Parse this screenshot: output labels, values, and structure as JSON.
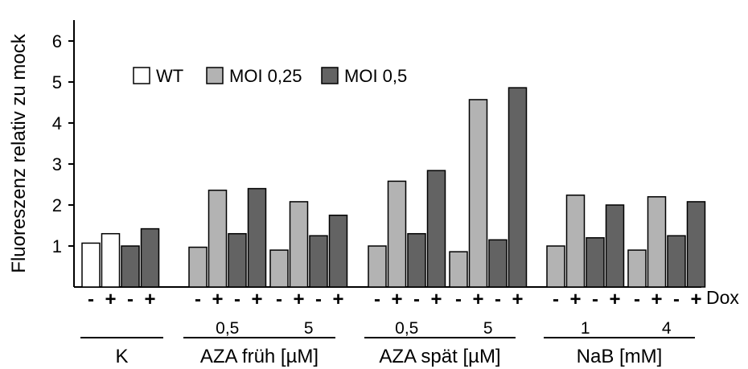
{
  "chart_data": {
    "type": "bar",
    "title": "",
    "ylabel": "Fluoreszenz relativ zu mock",
    "xlabel_right": "Dox",
    "ylim": [
      0,
      6.5
    ],
    "yticks": [
      "1",
      "2",
      "3",
      "4",
      "5",
      "6"
    ],
    "grid": false,
    "legend_position": "top-left",
    "legend": [
      {
        "name": "WT",
        "color": "#ffffff"
      },
      {
        "name": "MOI 0,25",
        "color": "#b3b3b3"
      },
      {
        "name": "MOI 0,5",
        "color": "#636363"
      }
    ],
    "dox_labels": [
      "-",
      "+"
    ],
    "groups": [
      {
        "label": "K",
        "subgroups": [
          {
            "label": "",
            "bars": [
              {
                "series": "WT",
                "dox": "-",
                "value": 1.07
              },
              {
                "series": "WT",
                "dox": "+",
                "value": 1.3
              },
              {
                "series": "MOI 0,5",
                "dox": "-",
                "value": 1.0
              },
              {
                "series": "MOI 0,5",
                "dox": "+",
                "value": 1.42
              }
            ]
          }
        ]
      },
      {
        "label": "AZA früh [µM]",
        "subgroups": [
          {
            "label": "0,5",
            "bars": [
              {
                "series": "MOI 0,25",
                "dox": "-",
                "value": 0.97
              },
              {
                "series": "MOI 0,25",
                "dox": "+",
                "value": 2.36
              },
              {
                "series": "MOI 0,5",
                "dox": "-",
                "value": 1.3
              },
              {
                "series": "MOI 0,5",
                "dox": "+",
                "value": 2.4
              }
            ]
          },
          {
            "label": "5",
            "bars": [
              {
                "series": "MOI 0,25",
                "dox": "-",
                "value": 0.9
              },
              {
                "series": "MOI 0,25",
                "dox": "+",
                "value": 2.08
              },
              {
                "series": "MOI 0,5",
                "dox": "-",
                "value": 1.25
              },
              {
                "series": "MOI 0,5",
                "dox": "+",
                "value": 1.75
              }
            ]
          }
        ]
      },
      {
        "label": "AZA spät [µM]",
        "subgroups": [
          {
            "label": "0,5",
            "bars": [
              {
                "series": "MOI 0,25",
                "dox": "-",
                "value": 1.0
              },
              {
                "series": "MOI 0,25",
                "dox": "+",
                "value": 2.58
              },
              {
                "series": "MOI 0,5",
                "dox": "-",
                "value": 1.3
              },
              {
                "series": "MOI 0,5",
                "dox": "+",
                "value": 2.84
              }
            ]
          },
          {
            "label": "5",
            "bars": [
              {
                "series": "MOI 0,25",
                "dox": "-",
                "value": 0.86
              },
              {
                "series": "MOI 0,25",
                "dox": "+",
                "value": 4.57
              },
              {
                "series": "MOI 0,5",
                "dox": "-",
                "value": 1.15
              },
              {
                "series": "MOI 0,5",
                "dox": "+",
                "value": 4.86
              }
            ]
          }
        ]
      },
      {
        "label": "NaB [mM]",
        "subgroups": [
          {
            "label": "1",
            "bars": [
              {
                "series": "MOI 0,25",
                "dox": "-",
                "value": 1.0
              },
              {
                "series": "MOI 0,25",
                "dox": "+",
                "value": 2.24
              },
              {
                "series": "MOI 0,5",
                "dox": "-",
                "value": 1.2
              },
              {
                "series": "MOI 0,5",
                "dox": "+",
                "value": 2.0
              }
            ]
          },
          {
            "label": "4",
            "bars": [
              {
                "series": "MOI 0,25",
                "dox": "-",
                "value": 0.9
              },
              {
                "series": "MOI 0,25",
                "dox": "+",
                "value": 2.2
              },
              {
                "series": "MOI 0,5",
                "dox": "-",
                "value": 1.25
              },
              {
                "series": "MOI 0,5",
                "dox": "+",
                "value": 2.08
              }
            ]
          }
        ]
      }
    ]
  }
}
